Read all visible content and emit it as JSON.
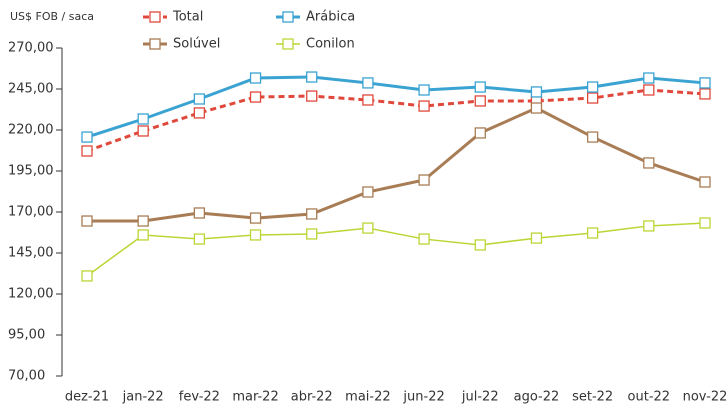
{
  "chart_data": {
    "type": "line",
    "y_label": "US$ FOB / saca",
    "categories": [
      "dez-21",
      "jan-22",
      "fev-22",
      "mar-22",
      "abr-22",
      "mai-22",
      "jun-22",
      "jul-22",
      "ago-22",
      "set-22",
      "out-22",
      "nov-22"
    ],
    "series": [
      {
        "name": "Total",
        "color": "#e0483c",
        "line_style": "dashed",
        "values": [
          207.2,
          219.4,
          230.4,
          240.1,
          240.7,
          238.3,
          234.6,
          237.7,
          237.7,
          239.5,
          244.4,
          242.0
        ]
      },
      {
        "name": "Arábica",
        "color": "#3aa3d2",
        "line_style": "solid",
        "values": [
          215.7,
          226.7,
          238.9,
          251.7,
          252.3,
          248.7,
          244.4,
          246.2,
          243.2,
          246.2,
          251.7,
          248.7
        ]
      },
      {
        "name": "Solúvel",
        "color": "#a87d55",
        "line_style": "solid",
        "values": [
          164.5,
          164.5,
          169.4,
          166.3,
          168.8,
          182.2,
          189.5,
          218.2,
          233.4,
          215.7,
          199.9,
          188.3
        ]
      },
      {
        "name": "Conilon",
        "color": "#bad635",
        "line_style": "thin",
        "values": [
          131.0,
          156.0,
          153.5,
          156.0,
          156.6,
          160.2,
          153.5,
          149.9,
          154.1,
          157.2,
          161.5,
          163.3
        ]
      }
    ],
    "ylim": [
      70,
      270
    ],
    "yticks": [
      {
        "value": 70,
        "label": "70,00"
      },
      {
        "value": 95,
        "label": "95,00"
      },
      {
        "value": 120,
        "label": "120,00"
      },
      {
        "value": 145,
        "label": "145,00"
      },
      {
        "value": 170,
        "label": "170,00"
      },
      {
        "value": 195,
        "label": "195,00"
      },
      {
        "value": 220,
        "label": "220,00"
      },
      {
        "value": 245,
        "label": "245,00"
      },
      {
        "value": 270,
        "label": "270,00"
      }
    ]
  }
}
